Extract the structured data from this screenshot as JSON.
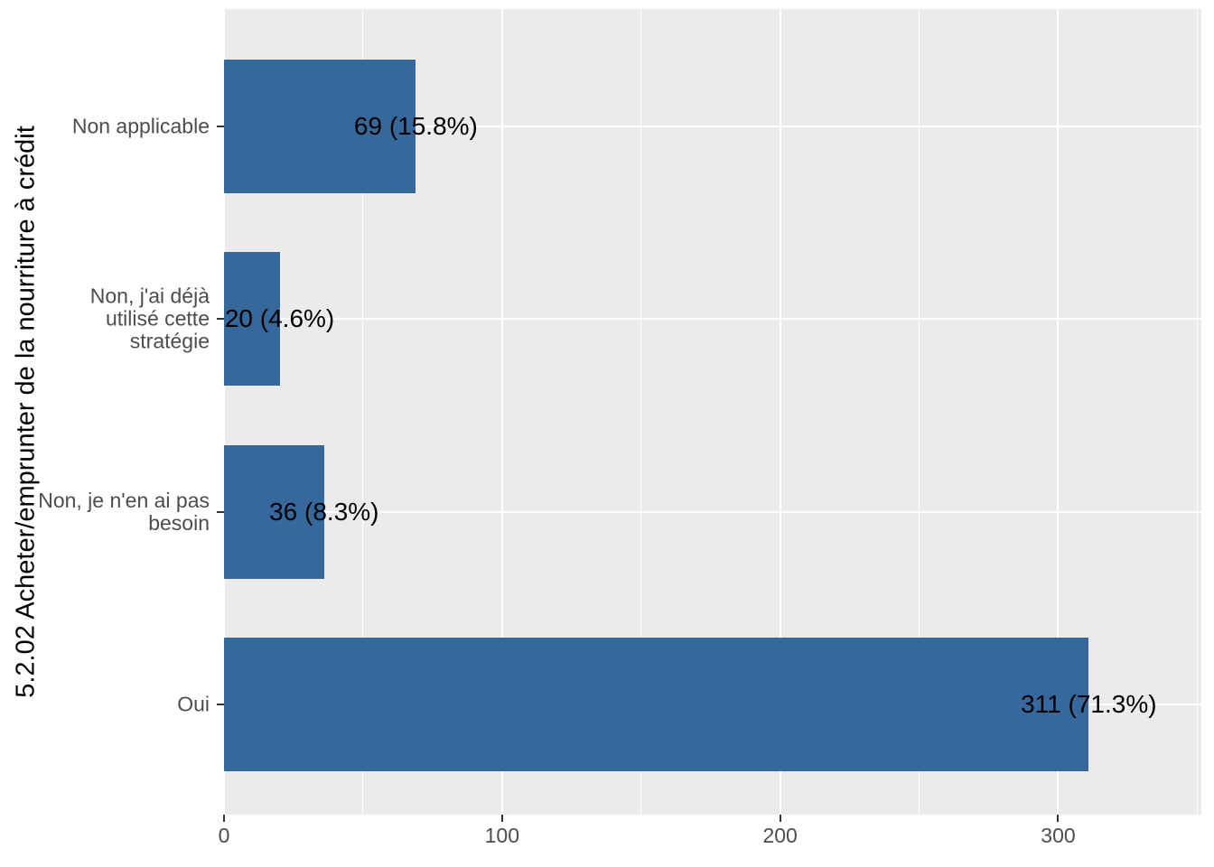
{
  "chart_data": {
    "type": "bar",
    "orientation": "horizontal",
    "title": "",
    "ylabel": "5.2.02 Acheter/emprunter de la nourriture à crédit",
    "xlabel": "",
    "categories": [
      "Non applicable",
      "Non, j'ai déjà\nutilisé cette\nstratégie",
      "Non, je n'en ai pas\nbesoin",
      "Oui"
    ],
    "values": [
      69,
      20,
      36,
      311
    ],
    "percentages": [
      15.8,
      4.6,
      8.3,
      71.3
    ],
    "bar_labels": [
      "69 (15.8%)",
      "20 (4.6%)",
      "36 (8.3%)",
      "311 (71.3%)"
    ],
    "x_major_ticks": [
      0,
      100,
      200,
      300
    ],
    "x_tick_labels": [
      "0",
      "100",
      "200",
      "300"
    ],
    "x_minor_ticks": [
      50,
      150,
      250,
      350
    ],
    "xlim": [
      0,
      351.5
    ],
    "grid": true,
    "legend_position": "none",
    "colors": {
      "bar": "#36689B",
      "panel_background": "#EBEBEB",
      "gridline": "#FFFFFF",
      "axis_text": "#4D4D4D",
      "axis_title": "#000000",
      "bar_label_text": "#000000",
      "tick_mark": "#333333",
      "figure_background": "#FFFFFF"
    }
  }
}
